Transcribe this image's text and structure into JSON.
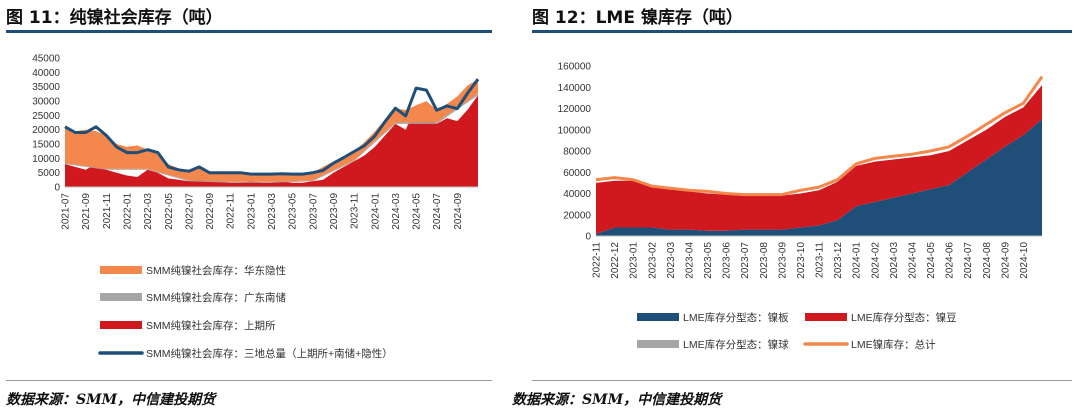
{
  "figures": [
    {
      "title": "图 11：纯镍社会库存（吨）",
      "source": "数据来源：SMM，中信建投期货"
    },
    {
      "title": "图 12：LME 镍库存（吨）",
      "source": "数据来源：SMM，中信建投期货"
    }
  ],
  "chart_data": [
    {
      "type": "area",
      "title": "",
      "ylim": [
        0,
        45000
      ],
      "yticks": [
        0,
        5000,
        10000,
        15000,
        20000,
        25000,
        30000,
        35000,
        40000,
        45000
      ],
      "x_labels": [
        "2021-07",
        "2021-09",
        "2021-11",
        "2022-01",
        "2022-03",
        "2022-05",
        "2022-07",
        "2022-09",
        "2022-11",
        "2023-01",
        "2023-03",
        "2023-05",
        "2023-07",
        "2023-09",
        "2023-11",
        "2024-01",
        "2024-03",
        "2024-05",
        "2024-07",
        "2024-09"
      ],
      "x_range": [
        "2021-07",
        "2024-11"
      ],
      "grid": false,
      "legend_position": "bottom",
      "series": [
        {
          "name": "SMM纯镍社会库存：上期所",
          "kind": "area",
          "color": "#d0181f",
          "x": [
            "2021-07",
            "2021-08",
            "2021-09",
            "2021-10",
            "2021-11",
            "2021-12",
            "2022-01",
            "2022-02",
            "2022-03",
            "2022-04",
            "2022-05",
            "2022-06",
            "2022-07",
            "2022-08",
            "2022-09",
            "2022-10",
            "2022-11",
            "2022-12",
            "2023-01",
            "2023-02",
            "2023-03",
            "2023-04",
            "2023-05",
            "2023-06",
            "2023-07",
            "2023-08",
            "2023-09",
            "2023-10",
            "2023-11",
            "2023-12",
            "2024-01",
            "2024-02",
            "2024-03",
            "2024-04",
            "2024-05",
            "2024-06",
            "2024-07",
            "2024-08",
            "2024-09",
            "2024-10",
            "2024-11"
          ],
          "values": [
            8000,
            7000,
            6000,
            8000,
            6000,
            5000,
            4000,
            3500,
            6000,
            5000,
            3000,
            2500,
            2000,
            2500,
            2000,
            2000,
            1500,
            1500,
            2000,
            1500,
            1500,
            2000,
            1500,
            1500,
            2000,
            2500,
            5000,
            7000,
            9000,
            11000,
            14000,
            18000,
            22000,
            20000,
            28000,
            26000,
            22000,
            24000,
            23000,
            27000,
            32000
          ]
        },
        {
          "name": "SMM纯镍社会库存：广东南储",
          "kind": "area",
          "color": "#a6a6a6",
          "x": [
            "2021-07",
            "2021-11",
            "2022-03",
            "2022-07",
            "2022-11",
            "2023-03",
            "2023-07",
            "2023-11",
            "2024-03",
            "2024-07",
            "2024-11"
          ],
          "values": [
            300,
            300,
            300,
            300,
            300,
            300,
            300,
            400,
            500,
            600,
            600
          ]
        },
        {
          "name": "SMM纯镍社会库存：华东隐性",
          "kind": "area",
          "color": "#f4874b",
          "x": [
            "2021-07",
            "2021-08",
            "2021-09",
            "2021-10",
            "2021-11",
            "2021-12",
            "2022-01",
            "2022-02",
            "2022-03",
            "2022-04",
            "2022-05",
            "2022-06",
            "2022-07",
            "2022-08",
            "2022-09",
            "2022-10",
            "2022-11",
            "2022-12",
            "2023-01",
            "2023-02",
            "2023-03",
            "2023-04",
            "2023-05",
            "2023-06",
            "2023-07",
            "2023-08",
            "2023-09",
            "2023-10",
            "2023-11",
            "2023-12",
            "2024-01",
            "2024-02",
            "2024-03",
            "2024-04",
            "2024-05",
            "2024-06",
            "2024-07",
            "2024-08",
            "2024-09",
            "2024-10",
            "2024-11"
          ],
          "values": [
            12700,
            11700,
            12700,
            12700,
            11700,
            8700,
            7700,
            8200,
            6700,
            6700,
            3700,
            3200,
            3200,
            4200,
            2700,
            2700,
            3200,
            3200,
            2200,
            2700,
            2700,
            2300,
            2700,
            2700,
            2700,
            3000,
            3000,
            3000,
            3000,
            3000,
            3400,
            4400,
            5000,
            4300,
            6000,
            7400,
            4300,
            3900,
            4000,
            5400,
            5000
          ]
        },
        {
          "name": "SMM纯镍社会库存：三地总量（上期所+南储+隐性）",
          "kind": "line",
          "color": "#1f4e79",
          "x": [
            "2021-07",
            "2021-08",
            "2021-09",
            "2021-10",
            "2021-11",
            "2021-12",
            "2022-01",
            "2022-02",
            "2022-03",
            "2022-04",
            "2022-05",
            "2022-06",
            "2022-07",
            "2022-08",
            "2022-09",
            "2022-10",
            "2022-11",
            "2022-12",
            "2023-01",
            "2023-02",
            "2023-03",
            "2023-04",
            "2023-05",
            "2023-06",
            "2023-07",
            "2023-08",
            "2023-09",
            "2023-10",
            "2023-11",
            "2023-12",
            "2024-01",
            "2024-02",
            "2024-03",
            "2024-04",
            "2024-05",
            "2024-06",
            "2024-07",
            "2024-08",
            "2024-09",
            "2024-10",
            "2024-11"
          ],
          "values": [
            21000,
            19000,
            19000,
            21000,
            18000,
            14000,
            12000,
            12000,
            13000,
            12000,
            7000,
            6000,
            5500,
            7000,
            5000,
            5000,
            5000,
            5000,
            4500,
            4500,
            4500,
            4600,
            4500,
            4500,
            5000,
            5800,
            8300,
            10300,
            12400,
            14400,
            17800,
            22800,
            27500,
            24800,
            34500,
            33800,
            26800,
            28300,
            27300,
            32800,
            37600
          ]
        }
      ]
    },
    {
      "type": "area",
      "title": "",
      "ylim": [
        0,
        160000
      ],
      "yticks": [
        0,
        20000,
        40000,
        60000,
        80000,
        100000,
        120000,
        140000,
        160000
      ],
      "x_labels": [
        "2022-11",
        "2022-12",
        "2023-01",
        "2023-02",
        "2023-03",
        "2023-04",
        "2023-05",
        "2023-06",
        "2023-07",
        "2023-08",
        "2023-09",
        "2023-10",
        "2023-11",
        "2023-12",
        "2024-01",
        "2024-02",
        "2024-03",
        "2024-04",
        "2024-05",
        "2024-06",
        "2024-07",
        "2024-08",
        "2024-09",
        "2024-10"
      ],
      "x_range": [
        "2022-11",
        "2024-11"
      ],
      "grid": false,
      "legend_position": "bottom",
      "series": [
        {
          "name": "LME库存分型态：镍板",
          "kind": "area",
          "color": "#1f4e79",
          "x": [
            "2022-11",
            "2022-12",
            "2023-01",
            "2023-02",
            "2023-03",
            "2023-04",
            "2023-05",
            "2023-06",
            "2023-07",
            "2023-08",
            "2023-09",
            "2023-10",
            "2023-11",
            "2023-12",
            "2024-01",
            "2024-02",
            "2024-03",
            "2024-04",
            "2024-05",
            "2024-06",
            "2024-07",
            "2024-08",
            "2024-09",
            "2024-10",
            "2024-11"
          ],
          "values": [
            2000,
            8000,
            8000,
            8000,
            6000,
            6000,
            5000,
            5000,
            6000,
            6000,
            6000,
            8000,
            10000,
            15000,
            28000,
            32000,
            36000,
            40000,
            44000,
            48000,
            60000,
            72000,
            84000,
            95000,
            110000
          ]
        },
        {
          "name": "LME库存分型态：镍豆",
          "kind": "area",
          "color": "#d0181f",
          "x": [
            "2022-11",
            "2022-12",
            "2023-01",
            "2023-02",
            "2023-03",
            "2023-04",
            "2023-05",
            "2023-06",
            "2023-07",
            "2023-08",
            "2023-09",
            "2023-10",
            "2023-11",
            "2023-12",
            "2024-01",
            "2024-02",
            "2024-03",
            "2024-04",
            "2024-05",
            "2024-06",
            "2024-07",
            "2024-08",
            "2024-09",
            "2024-10",
            "2024-11"
          ],
          "values": [
            48000,
            44000,
            44000,
            38000,
            38000,
            36000,
            35000,
            34000,
            32000,
            32000,
            32000,
            32000,
            33000,
            36000,
            38000,
            38000,
            36000,
            34000,
            32000,
            32000,
            30000,
            28000,
            28000,
            26000,
            32000
          ]
        },
        {
          "name": "LME库存分型态：镍球",
          "kind": "area",
          "color": "#a6a6a6",
          "x": [
            "2022-11",
            "2023-05",
            "2023-11",
            "2024-05",
            "2024-11"
          ],
          "values": [
            0,
            0,
            0,
            0,
            0
          ]
        },
        {
          "name": "LME镍库存：总计",
          "kind": "line",
          "color": "#f4874b",
          "x": [
            "2022-11",
            "2022-12",
            "2023-01",
            "2023-02",
            "2023-03",
            "2023-04",
            "2023-05",
            "2023-06",
            "2023-07",
            "2023-08",
            "2023-09",
            "2023-10",
            "2023-11",
            "2023-12",
            "2024-01",
            "2024-02",
            "2024-03",
            "2024-04",
            "2024-05",
            "2024-06",
            "2024-07",
            "2024-08",
            "2024-09",
            "2024-10",
            "2024-11"
          ],
          "values": [
            53000,
            55000,
            53000,
            47000,
            45000,
            43000,
            42000,
            40000,
            39000,
            39000,
            39000,
            43000,
            46000,
            53000,
            68000,
            73000,
            75000,
            77000,
            80000,
            84000,
            94000,
            105000,
            116000,
            125000,
            150000
          ]
        }
      ]
    }
  ]
}
